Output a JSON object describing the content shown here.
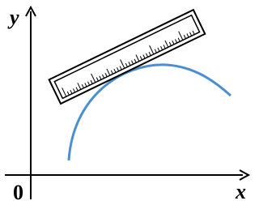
{
  "labels": {
    "y": "y",
    "x": "x",
    "origin": "0"
  }
}
